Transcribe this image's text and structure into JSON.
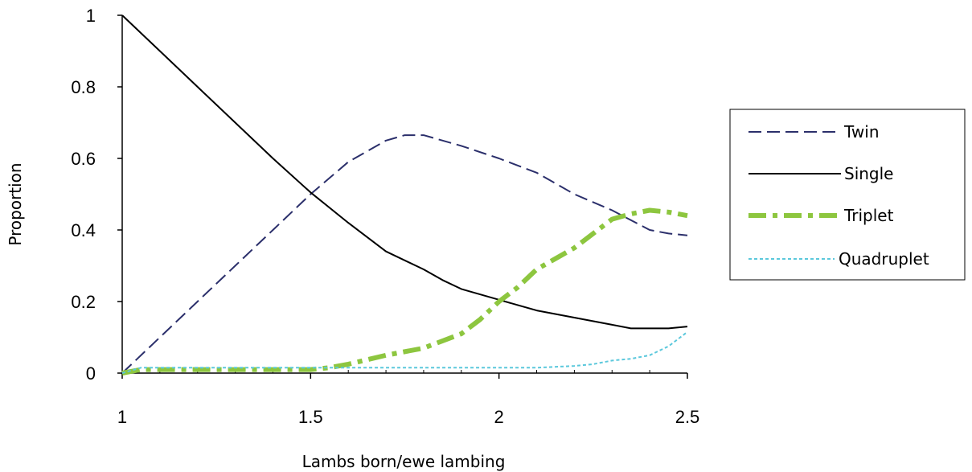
{
  "chart_data": {
    "type": "line",
    "xlabel": "Lambs born/ewe lambing",
    "ylabel": "Proportion",
    "xlim": [
      1,
      2.5
    ],
    "ylim": [
      0,
      1
    ],
    "x_ticks": [
      "1",
      "1.5",
      "2",
      "2.5"
    ],
    "y_ticks": [
      "0",
      "0.2",
      "0.4",
      "0.6",
      "0.8",
      "1"
    ],
    "grid": false,
    "legend_position": "right",
    "series": [
      {
        "name": "Twin",
        "color": "#2b2f6b",
        "style": "dashed",
        "points": [
          [
            1.0,
            0.0
          ],
          [
            1.1,
            0.1
          ],
          [
            1.2,
            0.2
          ],
          [
            1.3,
            0.3
          ],
          [
            1.4,
            0.4
          ],
          [
            1.5,
            0.5
          ],
          [
            1.6,
            0.59
          ],
          [
            1.7,
            0.65
          ],
          [
            1.75,
            0.665
          ],
          [
            1.8,
            0.665
          ],
          [
            1.9,
            0.635
          ],
          [
            2.0,
            0.6
          ],
          [
            2.1,
            0.56
          ],
          [
            2.2,
            0.5
          ],
          [
            2.3,
            0.455
          ],
          [
            2.4,
            0.4
          ],
          [
            2.45,
            0.39
          ],
          [
            2.5,
            0.385
          ]
        ]
      },
      {
        "name": "Single",
        "color": "#000000",
        "style": "solid",
        "points": [
          [
            1.0,
            1.0
          ],
          [
            1.1,
            0.9
          ],
          [
            1.2,
            0.8
          ],
          [
            1.3,
            0.7
          ],
          [
            1.4,
            0.6
          ],
          [
            1.5,
            0.505
          ],
          [
            1.6,
            0.42
          ],
          [
            1.7,
            0.34
          ],
          [
            1.8,
            0.29
          ],
          [
            1.85,
            0.26
          ],
          [
            1.9,
            0.235
          ],
          [
            2.0,
            0.205
          ],
          [
            2.1,
            0.175
          ],
          [
            2.2,
            0.155
          ],
          [
            2.3,
            0.135
          ],
          [
            2.35,
            0.125
          ],
          [
            2.45,
            0.125
          ],
          [
            2.5,
            0.13
          ]
        ]
      },
      {
        "name": "Triplet",
        "color": "#8dc63f",
        "style": "dash-dot",
        "points": [
          [
            1.0,
            0.0
          ],
          [
            1.05,
            0.01
          ],
          [
            1.5,
            0.01
          ],
          [
            1.55,
            0.015
          ],
          [
            1.6,
            0.025
          ],
          [
            1.7,
            0.05
          ],
          [
            1.8,
            0.07
          ],
          [
            1.9,
            0.11
          ],
          [
            1.95,
            0.15
          ],
          [
            2.0,
            0.2
          ],
          [
            2.05,
            0.24
          ],
          [
            2.1,
            0.29
          ],
          [
            2.2,
            0.35
          ],
          [
            2.3,
            0.43
          ],
          [
            2.35,
            0.445
          ],
          [
            2.4,
            0.455
          ],
          [
            2.45,
            0.45
          ],
          [
            2.5,
            0.44
          ]
        ]
      },
      {
        "name": "Quadruplet",
        "color": "#5bc8dc",
        "style": "dotted",
        "points": [
          [
            1.0,
            0.0
          ],
          [
            1.05,
            0.015
          ],
          [
            2.1,
            0.015
          ],
          [
            2.2,
            0.02
          ],
          [
            2.25,
            0.025
          ],
          [
            2.3,
            0.035
          ],
          [
            2.35,
            0.04
          ],
          [
            2.4,
            0.05
          ],
          [
            2.45,
            0.075
          ],
          [
            2.5,
            0.115
          ]
        ]
      }
    ]
  }
}
